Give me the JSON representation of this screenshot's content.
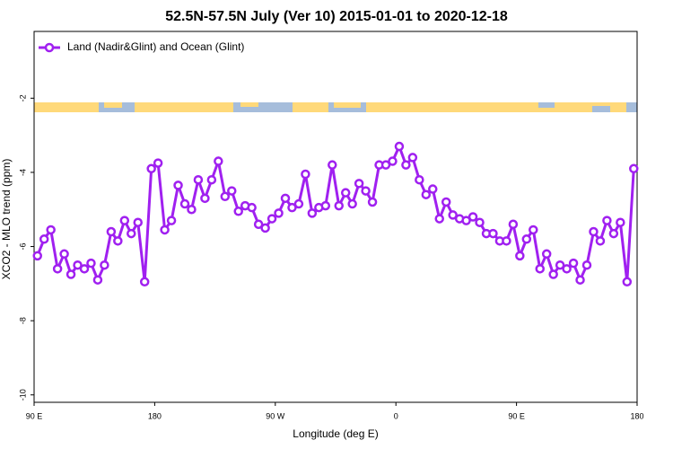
{
  "chart_data": {
    "type": "line",
    "title": "52.5N-57.5N July (Ver 10)   2015-01-01 to 2020-12-18",
    "xlabel": "Longitude (deg E)",
    "ylabel": "XCO2 - MLO trend (ppm)",
    "legend_position": "upper left",
    "xlim": [
      90,
      540
    ],
    "ylim": [
      -10.2,
      -0.2
    ],
    "xticks": [
      {
        "value": 90,
        "label": "90 E"
      },
      180,
      {
        "value": 270,
        "label": "90 W"
      },
      {
        "value": 360,
        "label": "0"
      },
      {
        "value": 450,
        "label": "90 E"
      },
      {
        "value": 540,
        "label": "180"
      }
    ],
    "yticks": [
      -2,
      -4,
      -6,
      -8,
      -10
    ],
    "x": [
      92.5,
      97.5,
      102.5,
      107.5,
      112.5,
      117.5,
      122.5,
      127.5,
      132.5,
      137.5,
      142.5,
      147.5,
      152.5,
      157.5,
      162.5,
      167.5,
      172.5,
      177.5,
      182.5,
      187.5,
      192.5,
      197.5,
      202.5,
      207.5,
      212.5,
      217.5,
      222.5,
      227.5,
      232.5,
      237.5,
      242.5,
      247.5,
      252.5,
      257.5,
      262.5,
      267.5,
      272.5,
      277.5,
      282.5,
      287.5,
      292.5,
      297.5,
      302.5,
      307.5,
      312.5,
      317.5,
      322.5,
      327.5,
      332.5,
      337.5,
      342.5,
      347.5,
      352.5,
      357.5,
      362.5,
      367.5,
      372.5,
      377.5,
      382.5,
      387.5,
      392.5,
      397.5,
      402.5,
      407.5,
      412.5,
      417.5,
      422.5,
      427.5,
      432.5,
      437.5,
      442.5,
      447.5,
      452.5,
      457.5,
      462.5,
      467.5,
      472.5,
      477.5,
      482.5,
      487.5,
      492.5,
      497.5,
      502.5,
      507.5,
      512.5,
      517.5,
      522.5,
      527.5,
      532.5,
      537.5
    ],
    "series": [
      {
        "name": "Land (Nadir&Glint) and Ocean (Glint)",
        "color": "#a020f0",
        "values": [
          -6.25,
          -5.8,
          -5.55,
          -6.6,
          -6.2,
          -6.75,
          -6.5,
          -6.6,
          -6.45,
          -6.9,
          -6.5,
          -5.6,
          -5.85,
          -5.3,
          -5.65,
          -5.35,
          -6.95,
          -3.9,
          -3.75,
          -5.55,
          -5.3,
          -4.35,
          -4.85,
          -5.0,
          -4.2,
          -4.7,
          -4.2,
          -3.7,
          -4.65,
          -4.5,
          -5.05,
          -4.9,
          -4.95,
          -5.4,
          -5.5,
          -5.25,
          -5.1,
          -4.7,
          -4.95,
          -4.85,
          -4.05,
          -5.1,
          -4.95,
          -4.9,
          -3.8,
          -4.9,
          -4.55,
          -4.85,
          -4.3,
          -4.5,
          -4.8,
          -3.8,
          -3.8,
          -3.7,
          -3.3,
          -3.8,
          -3.6,
          -4.2,
          -4.6,
          -4.45,
          -5.25,
          -4.8,
          -5.15,
          -5.25,
          -5.3,
          -5.2,
          -5.35,
          -5.65,
          -5.65,
          -5.85,
          -5.85,
          -5.4,
          -6.25,
          -5.8,
          -5.55,
          -6.6,
          -6.2,
          -6.75,
          -6.5,
          -6.6,
          -6.45,
          -6.9,
          -6.5,
          -5.6,
          -5.85,
          -5.3,
          -5.65,
          -5.35,
          -6.95,
          -3.9
        ]
      }
    ]
  }
}
